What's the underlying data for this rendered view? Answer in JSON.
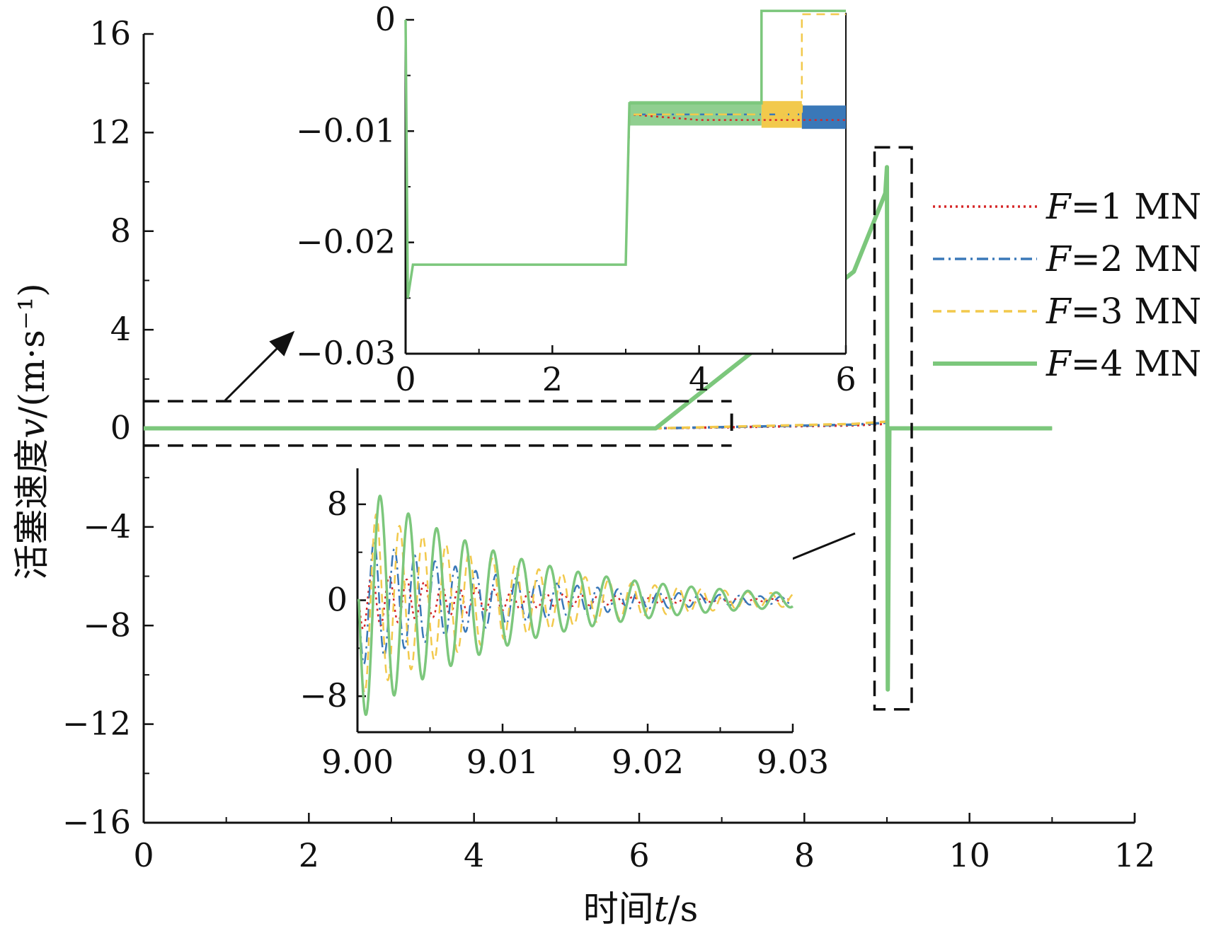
{
  "chart_data": [
    {
      "type": "line",
      "id": "main",
      "xlabel": {
        "prefix": "时间",
        "var": "t",
        "suffix": "/s"
      },
      "ylabel": {
        "prefix": "活塞速度",
        "var": "v",
        "suffix": "/(m·s⁻¹)"
      },
      "xlim": [
        0,
        12
      ],
      "ylim": [
        -16,
        16
      ],
      "xticks": [
        0,
        2,
        4,
        6,
        8,
        10,
        12
      ],
      "xtick_labels": [
        "0",
        "2",
        "4",
        "6",
        "8",
        "10",
        "12"
      ],
      "yticks": [
        16,
        12,
        8,
        4,
        0,
        -4,
        -8,
        -12,
        -16
      ],
      "ytick_labels": [
        "16",
        "12",
        "8",
        "4",
        "0",
        "−4",
        "−8",
        "−12",
        "−16"
      ],
      "legend_position": "right",
      "series": [
        {
          "name": "F=1 MN",
          "var": "F",
          "rest": "=1 MN",
          "color": "#d62728",
          "style": "dotted",
          "peak": 0.2,
          "trough": -0.1
        },
        {
          "name": "F=2 MN",
          "var": "F",
          "rest": "=2 MN",
          "color": "#3a78b8",
          "style": "dashdot",
          "peak": 0.25,
          "trough": -0.25
        },
        {
          "name": "F=3 MN",
          "var": "F",
          "rest": "=3 MN",
          "color": "#f2c94c",
          "style": "dashed",
          "peak": 0.3,
          "trough": -0.3
        },
        {
          "name": "F=4 MN",
          "var": "F",
          "rest": "=4 MN",
          "color": "#7cc77c",
          "style": "solid",
          "peak": 10.6,
          "trough": -10.6
        }
      ],
      "oscillation_time": 9.0,
      "end_time": 11.0
    },
    {
      "type": "line",
      "id": "inset_top",
      "xlim": [
        0,
        6
      ],
      "ylim": [
        -0.03,
        0
      ],
      "xticks": [
        0,
        2,
        4,
        6
      ],
      "xtick_labels": [
        "0",
        "2",
        "4",
        "6"
      ],
      "yticks": [
        0,
        -0.01,
        -0.02,
        -0.03
      ],
      "ytick_labels": [
        "0",
        "−0.01",
        "−0.02",
        "−0.03"
      ],
      "series": [
        {
          "name": "F=1 MN",
          "points": [
            [
              0,
              0
            ],
            [
              0.03,
              -0.025
            ],
            [
              0.1,
              -0.022
            ],
            [
              3.0,
              -0.022
            ],
            [
              3.05,
              -0.0085
            ],
            [
              4.0,
              -0.009
            ],
            [
              6.0,
              -0.009
            ]
          ]
        },
        {
          "name": "F=2 MN",
          "points": [
            [
              0,
              0
            ],
            [
              0.03,
              -0.025
            ],
            [
              0.1,
              -0.022
            ],
            [
              3.0,
              -0.022
            ],
            [
              3.05,
              -0.0085
            ],
            [
              5.4,
              -0.0085
            ],
            [
              6.0,
              -0.0085
            ]
          ]
        },
        {
          "name": "F=3 MN",
          "points": [
            [
              0,
              0
            ],
            [
              0.03,
              -0.025
            ],
            [
              0.1,
              -0.022
            ],
            [
              3.0,
              -0.022
            ],
            [
              3.05,
              -0.0085
            ],
            [
              5.4,
              -0.0085
            ],
            [
              5.4,
              0.0005
            ],
            [
              6.0,
              0.0005
            ]
          ]
        },
        {
          "name": "F=4 MN",
          "points": [
            [
              0,
              0
            ],
            [
              0.03,
              -0.025
            ],
            [
              0.1,
              -0.022
            ],
            [
              3.0,
              -0.022
            ],
            [
              3.05,
              -0.0075
            ],
            [
              4.85,
              -0.0075
            ],
            [
              4.85,
              0.0008
            ],
            [
              6.0,
              0.0008
            ]
          ]
        }
      ],
      "shaded_bands": [
        {
          "series": "F=3 MN",
          "x": [
            4.85,
            5.4
          ],
          "y": [
            -0.0097,
            -0.0073
          ]
        },
        {
          "series": "F=2 MN",
          "x": [
            5.4,
            6.0
          ],
          "y": [
            -0.0098,
            -0.0077
          ]
        }
      ]
    },
    {
      "type": "line",
      "id": "inset_bottom",
      "xlim": [
        9.0,
        9.03
      ],
      "ylim": [
        -11,
        11
      ],
      "xticks": [
        9.0,
        9.01,
        9.02,
        9.03
      ],
      "xtick_labels": [
        "9.00",
        "9.01",
        "9.02",
        "9.03"
      ],
      "yticks": [
        8,
        0,
        -8
      ],
      "ytick_labels": [
        "8",
        "0",
        "−8"
      ],
      "series": [
        {
          "name": "F=1 MN",
          "start": 9.0001,
          "amplitude": 2.5,
          "period": 0.0012,
          "decay": 0.009
        },
        {
          "name": "F=2 MN",
          "start": 9.0001,
          "amplitude": 5.5,
          "period": 0.0014,
          "decay": 0.01
        },
        {
          "name": "F=3 MN",
          "start": 9.0001,
          "amplitude": 8.0,
          "period": 0.0016,
          "decay": 0.011
        },
        {
          "name": "F=4 MN",
          "start": 9.0001,
          "amplitude": 10.0,
          "period": 0.00195,
          "decay": 0.0105
        }
      ]
    }
  ]
}
